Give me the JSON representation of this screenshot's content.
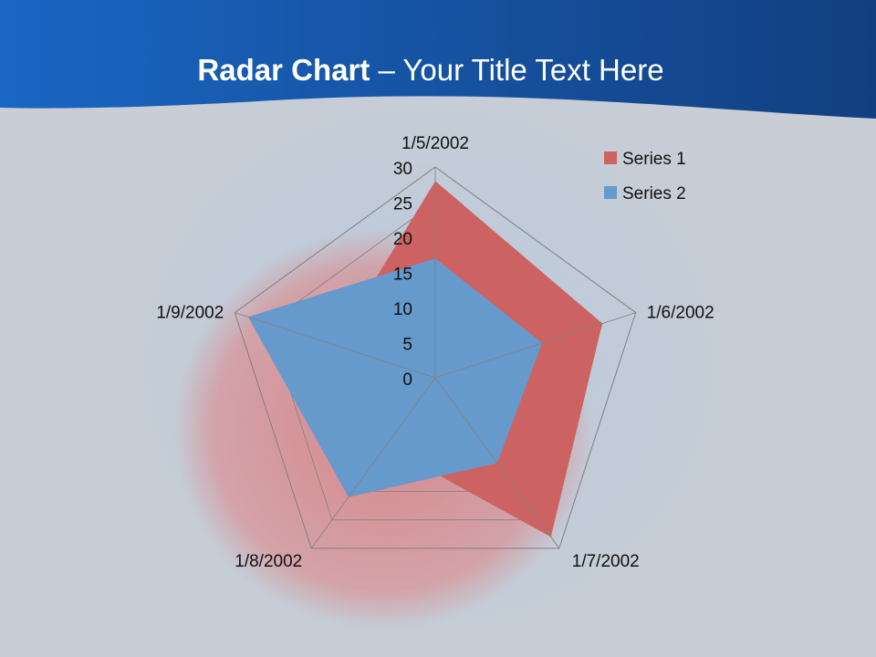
{
  "slide": {
    "title_bold": "Radar Chart",
    "title_rest": " – Your Title Text Here"
  },
  "colors": {
    "header": "#1a5aa8",
    "series1": "#cd6262",
    "series2": "#6699cc",
    "grid": "#808080"
  },
  "chart_data": {
    "type": "radar",
    "categories": [
      "1/5/2002",
      "1/6/2002",
      "1/7/2002",
      "1/8/2002",
      "1/9/2002"
    ],
    "series": [
      {
        "name": "Series 1",
        "values": [
          28,
          25,
          28,
          12,
          15
        ]
      },
      {
        "name": "Series 2",
        "values": [
          17,
          16,
          15,
          21,
          28
        ]
      }
    ],
    "ticks": [
      "0",
      "5",
      "10",
      "15",
      "20",
      "25",
      "30"
    ],
    "rlim": [
      0,
      30
    ],
    "legend": "top-right"
  }
}
